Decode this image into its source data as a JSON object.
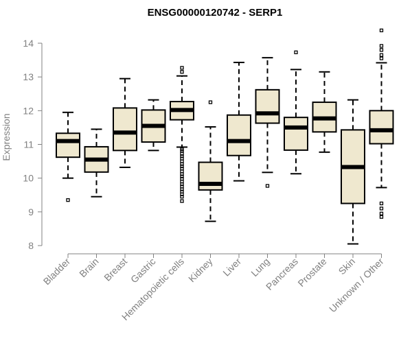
{
  "chart_data": {
    "type": "boxplot",
    "title": "ENSG00000120742 - SERP1",
    "xlabel": "",
    "ylabel": "Expression",
    "ylim": [
      8,
      14
    ],
    "yticks": [
      8,
      9,
      10,
      11,
      12,
      13,
      14
    ],
    "box_fill": "#efe8cf",
    "median_color": "#000000",
    "categories": [
      "Bladder",
      "Brain",
      "Breast",
      "Gastric",
      "Hematopoietic cells",
      "Kidney",
      "Liver",
      "Lung",
      "Pancreas",
      "Prostate",
      "Skin",
      "Unknown / Other"
    ],
    "series": [
      {
        "name": "Bladder",
        "min": 10.0,
        "q1": 10.62,
        "median": 11.1,
        "q3": 11.33,
        "max": 11.95,
        "outliers": [
          9.35
        ]
      },
      {
        "name": "Brain",
        "min": 9.45,
        "q1": 10.18,
        "median": 10.55,
        "q3": 10.93,
        "max": 11.45,
        "outliers": []
      },
      {
        "name": "Breast",
        "min": 10.32,
        "q1": 10.82,
        "median": 11.35,
        "q3": 12.08,
        "max": 12.95,
        "outliers": []
      },
      {
        "name": "Gastric",
        "min": 10.82,
        "q1": 11.07,
        "median": 11.55,
        "q3": 12.02,
        "max": 12.32,
        "outliers": []
      },
      {
        "name": "Hematopoietic cells",
        "min": 10.92,
        "q1": 11.73,
        "median": 12.02,
        "q3": 12.27,
        "max": 13.03,
        "outliers": [
          13.15,
          13.27,
          10.85,
          10.8,
          10.72,
          10.65,
          10.58,
          10.5,
          10.42,
          10.35,
          10.28,
          10.2,
          10.12,
          10.05,
          9.98,
          9.9,
          9.82,
          9.75,
          9.67,
          9.6,
          9.52,
          9.45,
          9.32
        ]
      },
      {
        "name": "Kidney",
        "min": 8.72,
        "q1": 9.65,
        "median": 9.83,
        "q3": 10.47,
        "max": 11.52,
        "outliers": [
          12.25
        ]
      },
      {
        "name": "Liver",
        "min": 9.92,
        "q1": 10.67,
        "median": 11.1,
        "q3": 11.87,
        "max": 13.43,
        "outliers": []
      },
      {
        "name": "Lung",
        "min": 10.17,
        "q1": 11.63,
        "median": 11.92,
        "q3": 12.62,
        "max": 13.57,
        "outliers": [
          9.77
        ]
      },
      {
        "name": "Pancreas",
        "min": 10.13,
        "q1": 10.83,
        "median": 11.5,
        "q3": 11.8,
        "max": 13.22,
        "outliers": [
          13.73
        ]
      },
      {
        "name": "Prostate",
        "min": 10.77,
        "q1": 11.37,
        "median": 11.77,
        "q3": 12.25,
        "max": 13.15,
        "outliers": []
      },
      {
        "name": "Skin",
        "min": 8.05,
        "q1": 9.25,
        "median": 10.33,
        "q3": 11.43,
        "max": 12.32,
        "outliers": []
      },
      {
        "name": "Unknown / Other",
        "min": 9.72,
        "q1": 11.02,
        "median": 11.42,
        "q3": 12.0,
        "max": 13.42,
        "outliers": [
          13.55,
          13.65,
          13.8,
          13.92,
          14.38,
          9.25,
          9.1,
          8.95,
          8.85
        ]
      }
    ]
  }
}
